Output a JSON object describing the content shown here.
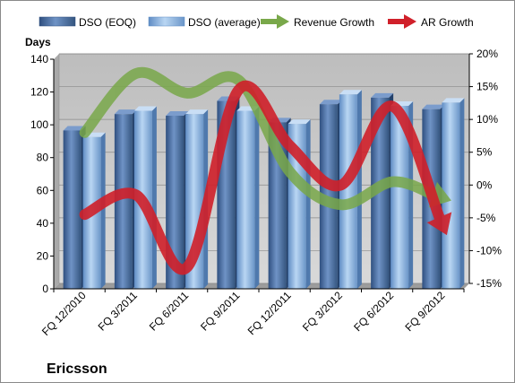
{
  "chart_data": {
    "type": "bar",
    "title": "",
    "company_label": "Ericsson",
    "ylabel": "Days",
    "ylim": [
      0,
      140
    ],
    "y2lim": [
      -15,
      20
    ],
    "yticks": [
      "0",
      "20",
      "40",
      "60",
      "80",
      "100",
      "120",
      "140"
    ],
    "y2ticks": [
      "-15%",
      "-10%",
      "-5%",
      "0%",
      "5%",
      "10%",
      "15%",
      "20%"
    ],
    "categories": [
      "FQ 12/2010",
      "FQ 3/2011",
      "FQ 6/2011",
      "FQ 9/2011",
      "FQ 12/2011",
      "FQ 3/2012",
      "FQ 6/2012",
      "FQ 9/2012"
    ],
    "series": [
      {
        "name": "DSO (EOQ)",
        "kind": "bar",
        "axis": "left",
        "color": "#4a6fa5",
        "values": [
          96,
          106,
          105,
          114,
          101,
          112,
          116,
          109
        ]
      },
      {
        "name": "DSO (average)",
        "kind": "bar",
        "axis": "left",
        "color": "#8cb4e2",
        "values": [
          92,
          108,
          106,
          108,
          100,
          118,
          111,
          113
        ]
      },
      {
        "name": "Revenue Growth",
        "kind": "arrow-line",
        "axis": "right",
        "color": "#79a84a",
        "values": [
          8,
          17,
          14,
          16,
          2,
          -3,
          0.5,
          -2
        ]
      },
      {
        "name": "AR Growth",
        "kind": "arrow-line",
        "axis": "right",
        "color": "#d0202a",
        "values": [
          -4.5,
          -1.5,
          -12.5,
          14.5,
          6,
          0,
          12,
          -6.5
        ]
      }
    ],
    "grid": true,
    "legend": "top"
  }
}
